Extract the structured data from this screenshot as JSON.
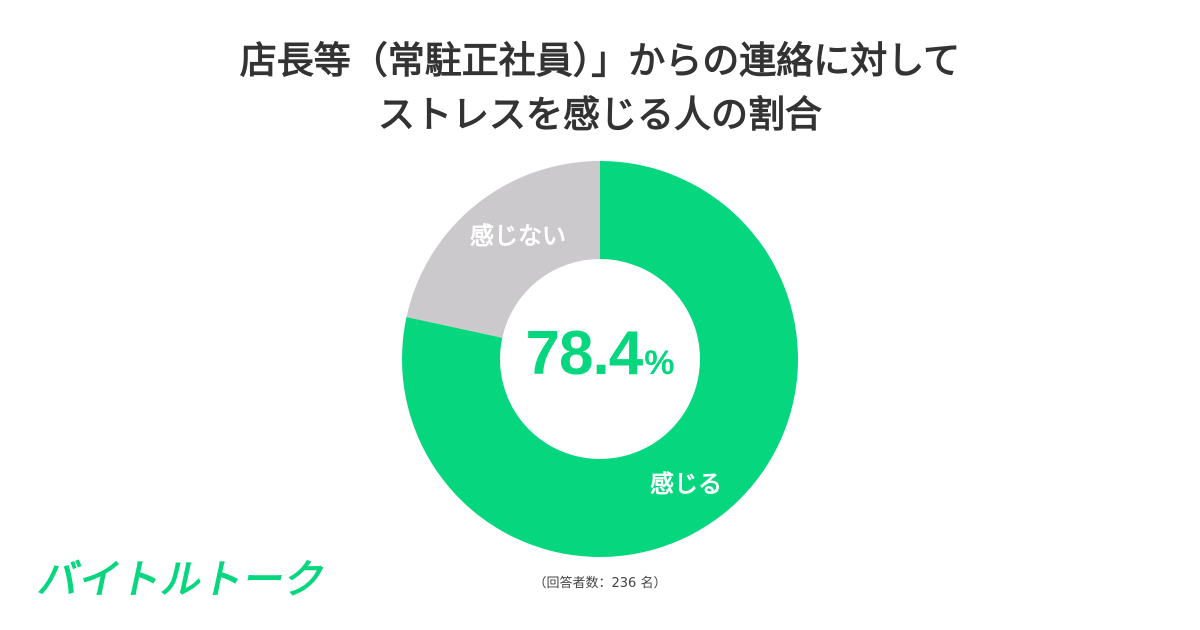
{
  "title": {
    "line1": "店長等（常駐正社員）」からの連絡に対して",
    "line2": "ストレスを感じる人の割合"
  },
  "center": {
    "value": "78.4",
    "unit": "%"
  },
  "footnote": "（回答者数：236 名）",
  "logo": "バイトルトーク",
  "colors": {
    "accent": "#06d67e",
    "gray": "#cbc9cc",
    "title": "#333333"
  },
  "chart_data": {
    "type": "pie",
    "variant": "donut",
    "title": "店長等（常駐正社員）」からの連絡に対してストレスを感じる人の割合",
    "categories": [
      "感じる",
      "感じない"
    ],
    "values": [
      78.4,
      21.6
    ],
    "unit": "%",
    "colors": [
      "#06d67e",
      "#cbc9cc"
    ],
    "center_label": "78.4%",
    "start_angle": "12 o'clock",
    "direction": "clockwise",
    "sample_size": 236,
    "note": "（回答者数：236 名）",
    "legend": "none (labels inside slices)"
  }
}
